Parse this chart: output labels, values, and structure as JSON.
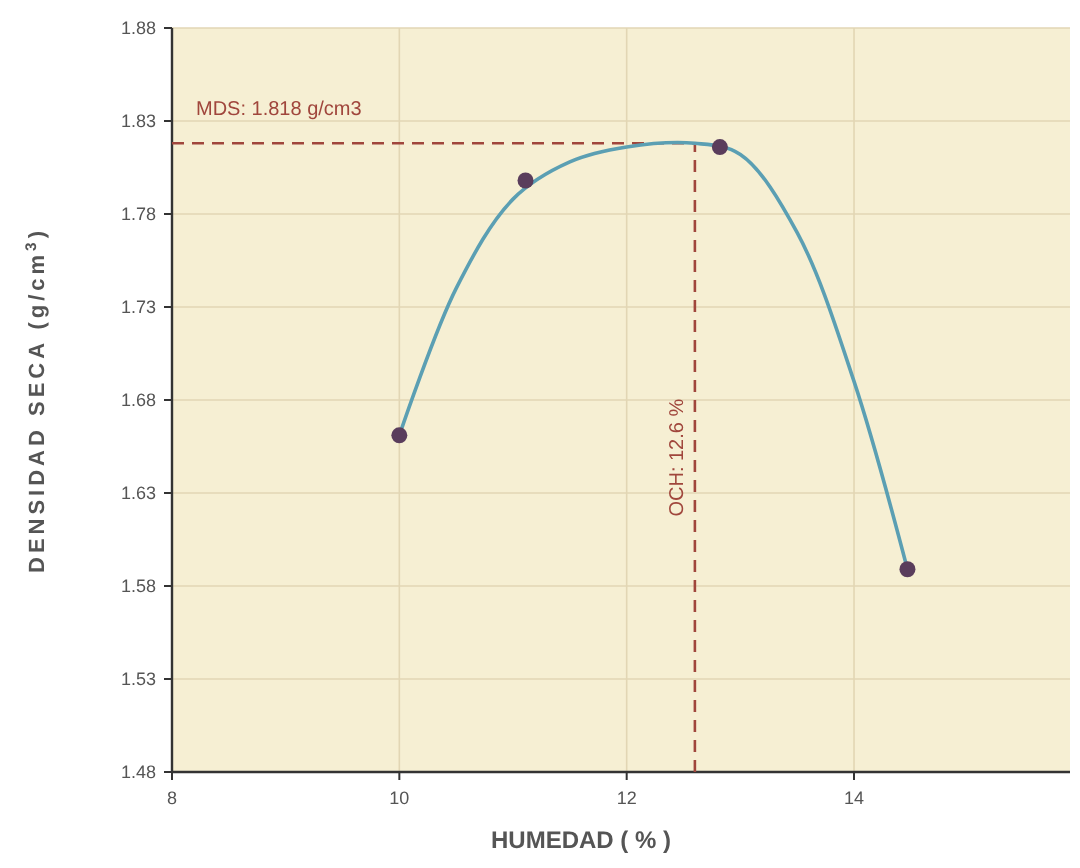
{
  "chart_data": {
    "type": "scatter",
    "xlabel": "HUMEDAD ( % )",
    "ylabel": "DENSIDAD SECA (g/cm$^{3}$)",
    "xlim": [
      8,
      15.9
    ],
    "xticks": [
      8,
      10,
      12,
      14
    ],
    "ylim": [
      1.48,
      1.88
    ],
    "yticks": [
      1.48,
      1.53,
      1.58,
      1.63,
      1.68,
      1.73,
      1.78,
      1.83,
      1.88
    ],
    "grid": true,
    "series": [
      {
        "type": "line",
        "color": "#5b9fb3",
        "x": [
          10,
          10.5,
          11,
          11.5,
          12,
          12.6,
          13,
          13.5,
          14,
          14.47
        ],
        "values": [
          1.661,
          1.74,
          1.788,
          1.808,
          1.816,
          1.818,
          1.812,
          1.77,
          1.69,
          1.589
        ]
      },
      {
        "color": "#5a3d5c",
        "marker": "circle",
        "x": [
          10,
          11.11,
          12.82,
          14.47
        ],
        "values": [
          1.661,
          1.798,
          1.816,
          1.589
        ]
      }
    ],
    "ref_lines": [
      {
        "axis": "y",
        "value": 1.818,
        "label": "MDS: 1.818 g/cm3",
        "color": "#a0463c",
        "line_style": "dashed"
      },
      {
        "axis": "x",
        "value": 12.6,
        "label": "OCH: 12.6 %",
        "color": "#a0463c",
        "line_style": "dashed"
      }
    ]
  }
}
